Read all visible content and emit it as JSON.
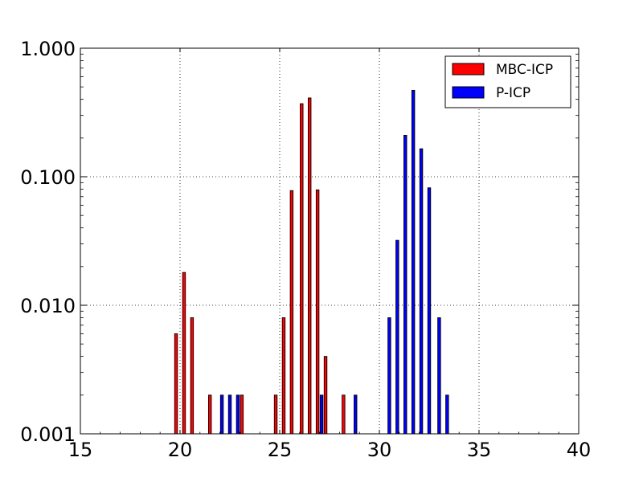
{
  "chart_data": {
    "type": "bar",
    "scale": {
      "y": "log"
    },
    "xlim": [
      15,
      40
    ],
    "ylim": [
      0.001,
      1.0
    ],
    "xticks": [
      15,
      20,
      25,
      30,
      35,
      40
    ],
    "xtick_labels": [
      "15",
      "20",
      "25",
      "30",
      "35",
      "40"
    ],
    "yticks": [
      0.001,
      0.01,
      0.1,
      1.0
    ],
    "ytick_labels": [
      "0.001",
      "0.010",
      "0.100",
      "1.000"
    ],
    "grid": true,
    "legend": "top-right",
    "series": [
      {
        "name": "MBC-ICP",
        "color": "#ff0000",
        "x": [
          19.8,
          20.2,
          20.6,
          21.5,
          23.1,
          24.8,
          25.2,
          25.6,
          26.1,
          26.5,
          26.9,
          27.3,
          28.2
        ],
        "values": [
          0.006,
          0.018,
          0.008,
          0.002,
          0.002,
          0.002,
          0.008,
          0.078,
          0.37,
          0.41,
          0.079,
          0.004,
          0.002
        ]
      },
      {
        "name": "P-ICP",
        "color": "#0000ff",
        "x": [
          22.1,
          22.5,
          22.9,
          27.1,
          28.8,
          30.5,
          30.9,
          31.3,
          31.7,
          32.1,
          32.5,
          33.0,
          33.4
        ],
        "values": [
          0.002,
          0.002,
          0.002,
          0.002,
          0.002,
          0.008,
          0.032,
          0.21,
          0.47,
          0.165,
          0.082,
          0.008,
          0.002
        ]
      }
    ]
  }
}
